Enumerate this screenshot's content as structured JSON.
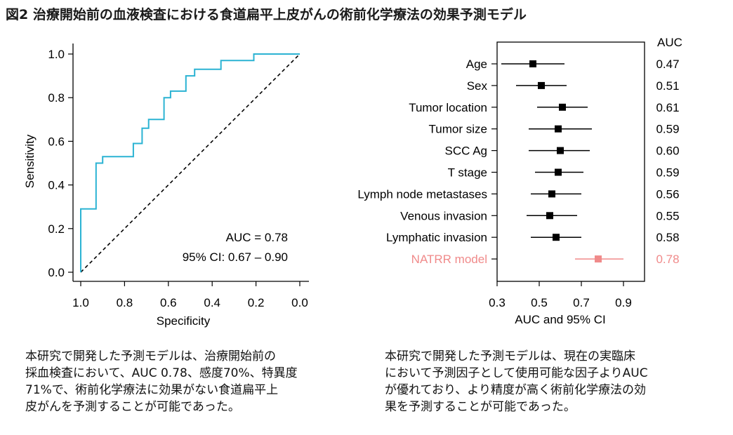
{
  "figure_title": "図2 治療開始前の血液検査における食道扁平上皮がんの術前化学療法の効果予測モデル",
  "chart_data": [
    {
      "type": "line",
      "subtype": "roc_curve",
      "xlabel": "Specificity",
      "ylabel": "Sensitivity",
      "xlim": [
        1.0,
        0.0
      ],
      "ylim": [
        0.0,
        1.0
      ],
      "x_reversed": true,
      "x_ticks": [
        "1.0",
        "0.8",
        "0.6",
        "0.4",
        "0.2",
        "0.0"
      ],
      "y_ticks": [
        "0.0",
        "0.2",
        "0.4",
        "0.6",
        "0.8",
        "1.0"
      ],
      "annotations": [
        "AUC = 0.78",
        "95% CI: 0.67 – 0.90"
      ],
      "line_color": "#2bb3d3",
      "reference_line": "diagonal dashed",
      "roc_points": [
        [
          1.0,
          0.0
        ],
        [
          1.0,
          0.29
        ],
        [
          0.93,
          0.29
        ],
        [
          0.93,
          0.5
        ],
        [
          0.9,
          0.5
        ],
        [
          0.9,
          0.53
        ],
        [
          0.76,
          0.53
        ],
        [
          0.76,
          0.59
        ],
        [
          0.72,
          0.59
        ],
        [
          0.72,
          0.66
        ],
        [
          0.69,
          0.66
        ],
        [
          0.69,
          0.7
        ],
        [
          0.62,
          0.7
        ],
        [
          0.62,
          0.8
        ],
        [
          0.59,
          0.8
        ],
        [
          0.59,
          0.83
        ],
        [
          0.52,
          0.83
        ],
        [
          0.52,
          0.9
        ],
        [
          0.48,
          0.9
        ],
        [
          0.48,
          0.93
        ],
        [
          0.36,
          0.93
        ],
        [
          0.36,
          0.97
        ],
        [
          0.21,
          0.97
        ],
        [
          0.21,
          1.0
        ],
        [
          0.0,
          1.0
        ]
      ]
    },
    {
      "type": "scatter",
      "subtype": "forest_plot",
      "xlabel": "AUC and 95% CI",
      "xlim": [
        0.3,
        1.0
      ],
      "x_ticks": [
        0.3,
        0.5,
        0.7,
        0.9
      ],
      "column_header": "AUC",
      "highlight_color": "#f08a8a",
      "rows": [
        {
          "label": "Age",
          "auc": 0.47,
          "ci": [
            0.32,
            0.62
          ],
          "auc_label": "0.47"
        },
        {
          "label": "Sex",
          "auc": 0.51,
          "ci": [
            0.39,
            0.63
          ],
          "auc_label": "0.51"
        },
        {
          "label": "Tumor location",
          "auc": 0.61,
          "ci": [
            0.49,
            0.73
          ],
          "auc_label": "0.61"
        },
        {
          "label": "Tumor size",
          "auc": 0.59,
          "ci": [
            0.45,
            0.75
          ],
          "auc_label": "0.59"
        },
        {
          "label": "SCC Ag",
          "auc": 0.6,
          "ci": [
            0.45,
            0.74
          ],
          "auc_label": "0.60"
        },
        {
          "label": "T stage",
          "auc": 0.59,
          "ci": [
            0.48,
            0.71
          ],
          "auc_label": "0.59"
        },
        {
          "label": "Lymph node metastases",
          "auc": 0.56,
          "ci": [
            0.46,
            0.7
          ],
          "auc_label": "0.56"
        },
        {
          "label": "Venous invasion",
          "auc": 0.55,
          "ci": [
            0.44,
            0.68
          ],
          "auc_label": "0.55"
        },
        {
          "label": "Lymphatic invasion",
          "auc": 0.58,
          "ci": [
            0.46,
            0.7
          ],
          "auc_label": "0.58"
        },
        {
          "label": "NATRR model",
          "auc": 0.78,
          "ci": [
            0.67,
            0.9
          ],
          "auc_label": "0.78",
          "highlight": true
        }
      ]
    }
  ],
  "captions": {
    "left": [
      "本研究で開発した予測モデルは、治療開始前の",
      "採血検査において、AUC 0.78、感度70%、特異度",
      "71%で、術前化学療法に効果がない食道扁平上",
      "皮がんを予測することが可能であった。"
    ],
    "right": [
      "本研究で開発した予測モデルは、現在の実臨床",
      "において予測因子として使用可能な因子よりAUC",
      "が優れており、より精度が高く術前化学療法の効",
      "果を予測することが可能であった。"
    ]
  }
}
